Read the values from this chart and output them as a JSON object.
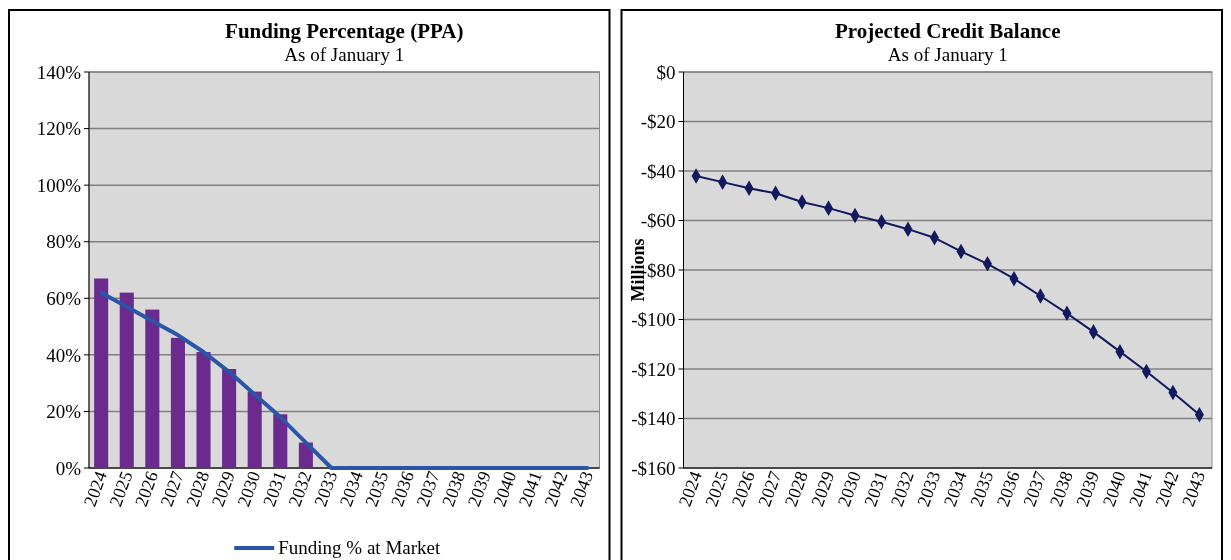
{
  "chart_data": [
    {
      "type": "bar",
      "title": "Funding Percentage (PPA)",
      "subtitle": "As of January 1",
      "categories": [
        "2024",
        "2025",
        "2026",
        "2027",
        "2028",
        "2029",
        "2030",
        "2031",
        "2032",
        "2033",
        "2034",
        "2035",
        "2036",
        "2037",
        "2038",
        "2039",
        "2040",
        "2041",
        "2042",
        "2043"
      ],
      "series": [
        {
          "type": "bar",
          "color": "#6a2a8e",
          "values": [
            67,
            62,
            56,
            46,
            41,
            35,
            27,
            19,
            9,
            0,
            0,
            0,
            0,
            0,
            0,
            0,
            0,
            0,
            0,
            0
          ]
        },
        {
          "type": "line",
          "name": "Funding % at Market",
          "color": "#2a56a8",
          "values": [
            62,
            57,
            52,
            47,
            41,
            34,
            26,
            18,
            9,
            0,
            0,
            0,
            0,
            0,
            0,
            0,
            0,
            0,
            0,
            0
          ]
        }
      ],
      "ylim": [
        0,
        140
      ],
      "yticks": [
        {
          "value": 0,
          "label": "0%"
        },
        {
          "value": 20,
          "label": "20%"
        },
        {
          "value": 40,
          "label": "40%"
        },
        {
          "value": 60,
          "label": "60%"
        },
        {
          "value": 80,
          "label": "80%"
        },
        {
          "value": 100,
          "label": "100%"
        },
        {
          "value": 120,
          "label": "120%"
        },
        {
          "value": 140,
          "label": "140%"
        }
      ],
      "grid": "y",
      "legend": "bottom"
    },
    {
      "type": "line",
      "title": "Projected Credit Balance",
      "subtitle": "As of January 1",
      "ylabel": "Millions",
      "categories": [
        "2024",
        "2025",
        "2026",
        "2027",
        "2028",
        "2029",
        "2030",
        "2031",
        "2032",
        "2033",
        "2034",
        "2035",
        "2036",
        "2037",
        "2038",
        "2039",
        "2040",
        "2041",
        "2042",
        "2043"
      ],
      "series": [
        {
          "color": "#111a5e",
          "values": [
            -42,
            -44.5,
            -47,
            -49,
            -52.5,
            -55,
            -58,
            -60.5,
            -63.5,
            -67,
            -72.5,
            -77.5,
            -83.5,
            -90.5,
            -97.5,
            -105,
            -113,
            -121,
            -129.5,
            -138.5
          ]
        }
      ],
      "ylim": [
        -160,
        0
      ],
      "yticks": [
        {
          "value": -160,
          "label": "-$160"
        },
        {
          "value": -140,
          "label": "-$140"
        },
        {
          "value": -120,
          "label": "-$120"
        },
        {
          "value": -100,
          "label": "-$100"
        },
        {
          "value": -80,
          "label": "-$80"
        },
        {
          "value": -60,
          "label": "-$60"
        },
        {
          "value": -40,
          "label": "-$40"
        },
        {
          "value": -20,
          "label": "-$20"
        },
        {
          "value": 0,
          "label": "$0"
        }
      ],
      "grid": "y",
      "marker": "diamond",
      "legend": false
    }
  ]
}
